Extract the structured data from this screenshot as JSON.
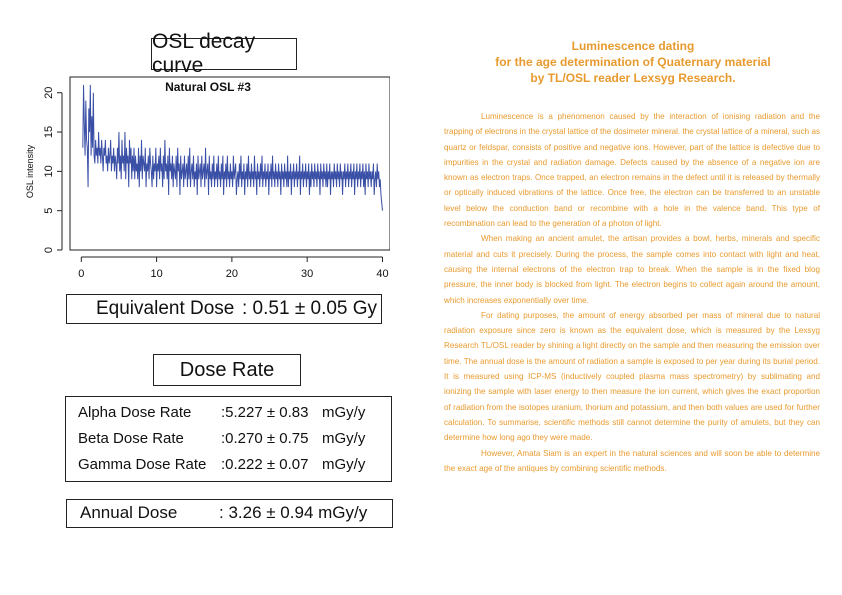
{
  "left_panel": {
    "osl_title": "OSL decay curve",
    "equivalent_dose": {
      "label": "Equivalent Dose",
      "value": ": 0.51 ± 0.05  Gy"
    },
    "dose_rate_title": "Dose Rate",
    "dose_rates": [
      {
        "name": "Alpha Dose Rate",
        "value": ":5.227 ± 0.83",
        "unit": "mGy/y"
      },
      {
        "name": "Beta Dose Rate",
        "value": ":0.270 ± 0.75",
        "unit": "mGy/y"
      },
      {
        "name": "Gamma Dose Rate",
        "value": ":0.222 ± 0.07",
        "unit": "mGy/y"
      }
    ],
    "annual_dose": {
      "label": "Annual Dose",
      "value": ": 3.26 ± 0.94 mGy/y"
    }
  },
  "chart_data": {
    "type": "line",
    "title": "Natural OSL #3",
    "xlabel": "",
    "ylabel": "OSL intensity",
    "xlim": [
      -1.5,
      41
    ],
    "ylim": [
      0,
      22
    ],
    "x_ticks": [
      0,
      10,
      20,
      30,
      40
    ],
    "y_ticks": [
      0,
      5,
      10,
      15,
      20
    ],
    "grid": false,
    "color": "#3a4fa6",
    "x_start": 0.2,
    "x_step": 0.1,
    "series": [
      {
        "values": [
          13,
          21,
          16,
          12,
          19,
          14,
          13,
          8,
          18,
          15,
          21,
          12,
          17,
          13,
          20,
          12,
          11,
          14,
          12,
          13,
          11,
          15,
          12,
          13,
          11,
          14,
          12,
          10,
          13,
          12,
          14,
          11,
          12,
          10,
          13,
          11,
          12,
          14,
          10,
          12,
          11,
          13,
          10,
          12,
          11,
          9,
          13,
          11,
          15,
          10,
          12,
          9,
          14,
          11,
          12,
          10,
          15,
          9,
          13,
          11,
          12,
          8,
          14,
          11,
          13,
          9,
          12,
          10,
          13,
          9,
          12,
          10,
          11,
          9,
          13,
          8,
          12,
          10,
          14,
          9,
          12,
          11,
          10,
          13,
          8,
          11,
          10,
          12,
          9,
          13,
          11,
          10,
          8,
          12,
          9,
          11,
          10,
          13,
          8,
          11,
          10,
          12,
          9,
          13,
          10,
          11,
          8,
          12,
          9,
          14,
          10,
          11,
          9,
          12,
          7,
          13,
          10,
          11,
          9,
          12,
          8,
          11,
          10,
          9,
          12,
          8,
          13,
          10,
          11,
          7,
          12,
          9,
          10,
          11,
          8,
          12,
          9,
          10,
          11,
          8,
          12,
          9,
          13,
          8,
          10,
          11,
          9,
          12,
          8,
          10,
          9,
          11,
          7,
          12,
          9,
          10,
          11,
          8,
          12,
          9,
          10,
          11,
          8,
          13,
          9,
          10,
          11,
          7,
          12,
          9,
          10,
          8,
          11,
          9,
          12,
          8,
          10,
          9,
          11,
          8,
          12,
          9,
          10,
          8,
          11,
          9,
          12,
          7,
          10,
          9,
          11,
          8,
          12,
          9,
          10,
          8,
          11,
          9,
          10,
          8,
          12,
          9,
          10,
          11,
          7,
          9,
          10,
          8,
          11,
          9,
          12,
          8,
          10,
          9,
          11,
          7,
          10,
          9,
          11,
          8,
          12,
          9,
          10,
          8,
          11,
          9,
          10,
          8,
          12,
          9,
          10,
          7,
          11,
          9,
          10,
          8,
          11,
          9,
          12,
          8,
          10,
          9,
          11,
          8,
          10,
          9,
          11,
          7,
          10,
          9,
          11,
          8,
          12,
          9,
          10,
          8,
          11,
          9,
          10,
          8,
          11,
          9,
          10,
          7,
          11,
          9,
          10,
          8,
          11,
          9,
          10,
          8,
          12,
          8,
          10,
          9,
          11,
          7,
          10,
          9,
          11,
          8,
          10,
          9,
          11,
          8,
          10,
          9,
          12,
          7,
          10,
          9,
          11,
          8,
          10,
          9,
          11,
          8,
          10,
          9,
          11,
          7,
          10,
          8,
          11,
          9,
          10,
          8,
          11,
          9,
          10,
          8,
          11,
          9,
          10,
          7,
          11,
          9,
          10,
          8,
          11,
          9,
          10,
          8,
          11,
          8,
          10,
          9,
          11,
          7,
          10,
          9,
          10,
          8,
          11,
          9,
          10,
          8,
          11,
          9,
          10,
          8,
          11,
          9,
          10,
          7,
          10,
          9,
          11,
          8,
          10,
          9,
          11,
          8,
          10,
          9,
          11,
          8,
          10,
          9,
          11,
          7,
          10,
          9,
          11,
          8,
          10,
          9,
          11,
          8,
          10,
          9,
          11,
          8,
          10,
          7,
          11,
          9,
          10,
          8,
          11,
          9,
          10,
          8,
          10,
          9,
          11,
          7,
          9,
          10,
          8,
          11,
          9,
          10,
          8,
          9,
          7,
          6,
          5
        ]
      }
    ]
  },
  "article": {
    "title_lines": [
      "Luminescence dating",
      "for the age determination of Quaternary material",
      "by TL/OSL reader Lexsyg Research."
    ],
    "paragraphs": [
      "Luminescence is a phenomenon caused by the interaction of ionising radiation and the trapping of electrons in the crystal lattice of the dosimeter mineral. the crystal lattice of a mineral, such as quartz or feldspar, consists of positive and negative ions. However, part of the lattice is defective due to impurities in the crystal and radiation damage. Defects caused by the absence of a negative ion are known as electron traps. Once trapped, an electron remains in the defect until it is released by thermally or optically induced vibrations of the lattice. Once free, the electron can be transferred to an unstable level below the conduction band or recombine with a hole in the valence band. This type of recombination can lead to the generation of a photon of light.",
      "When making an ancient amulet, the artisan provides a bowl, herbs, minerals and specific material and cuts it precisely. During the process, the sample comes into contact with light and heat, causing the internal electrons of the electron trap to break. When the sample is in the fixed blog pressure, the inner body is blocked from light. The electron begins to collect again around the amount, which increases exponentially over time.",
      "For dating purposes, the amount of energy absorbed per mass of mineral due to natural radiation exposure since zero is known as the equivalent dose, which is measured by the Lexsyg Research TL/OSL reader by shining a light directly on the sample and then measuring the emission over time. The annual dose is the amount of radiation a sample is exposed to per year during its burial period. It is measured using ICP-MS (inductively coupled plasma mass spectrometry) by sublimating and ionizing the sample with laser energy to then measure the ion current, which gives the exact proportion of radiation from the isotopes uranium, thorium and potassium, and then both values are used for further calculation. To summarise, scientific methods still cannot determine the purity of amulets, but they can determine how long ago they were made.",
      "However, Amata Siam is an expert in the natural sciences and will soon be able to determine the exact age of the antiques by combining scientific methods."
    ]
  }
}
